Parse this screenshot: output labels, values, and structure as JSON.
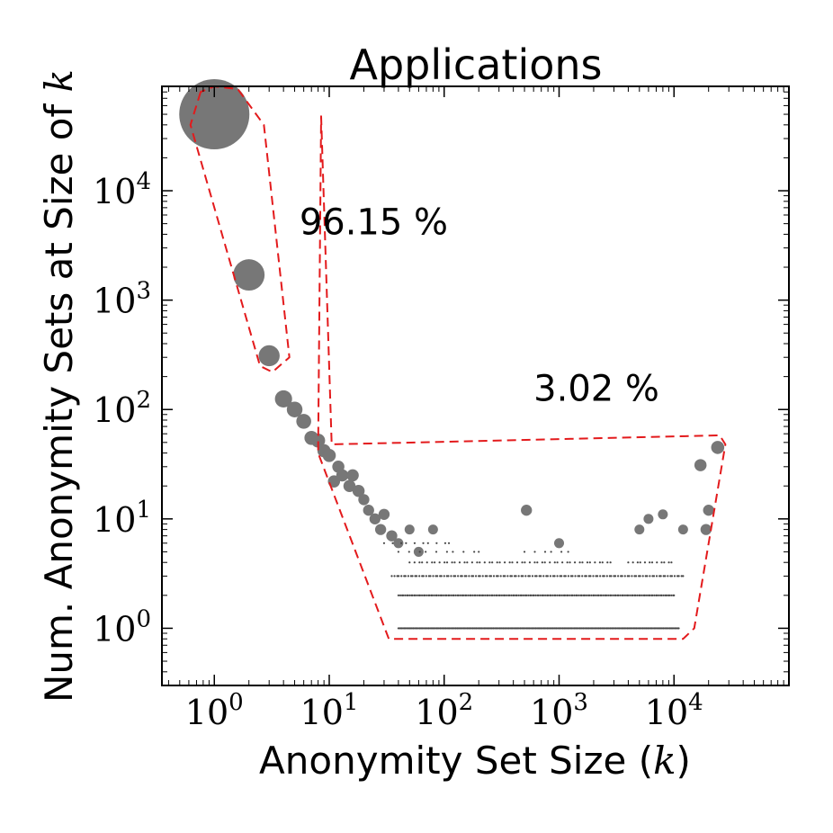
{
  "chart_data": {
    "type": "scatter",
    "title": "Applications",
    "xlabel": "Anonymity Set Size (k)",
    "ylabel": "Num. Anonymity Sets at Size of k",
    "xscale": "log",
    "yscale": "log",
    "xlim": [
      0.35,
      100000
    ],
    "ylim": [
      0.3,
      90000
    ],
    "x_ticks": [
      {
        "value": 1,
        "base": "10",
        "exp": "0"
      },
      {
        "value": 10,
        "base": "10",
        "exp": "1"
      },
      {
        "value": 100,
        "base": "10",
        "exp": "2"
      },
      {
        "value": 1000,
        "base": "10",
        "exp": "3"
      },
      {
        "value": 10000,
        "base": "10",
        "exp": "4"
      }
    ],
    "y_ticks": [
      {
        "value": 1,
        "base": "10",
        "exp": "0"
      },
      {
        "value": 10,
        "base": "10",
        "exp": "1"
      },
      {
        "value": 100,
        "base": "10",
        "exp": "2"
      },
      {
        "value": 1000,
        "base": "10",
        "exp": "3"
      },
      {
        "value": 10000,
        "base": "10",
        "exp": "4"
      }
    ],
    "grid": false,
    "marker_color": "#777777",
    "annotation_color": "#e31a1c",
    "marker_size_note": "marker area proportional to share of records",
    "points": [
      {
        "x": 1,
        "y": 50000,
        "s": 1
      },
      {
        "x": 2,
        "y": 1700,
        "s": 0.2
      },
      {
        "x": 3,
        "y": 310,
        "s": 0.09
      },
      {
        "x": 4,
        "y": 125,
        "s": 0.06
      },
      {
        "x": 5,
        "y": 100,
        "s": 0.05
      },
      {
        "x": 6,
        "y": 78,
        "s": 0.045
      },
      {
        "x": 7,
        "y": 55,
        "s": 0.04
      },
      {
        "x": 8,
        "y": 52,
        "s": 0.04
      },
      {
        "x": 9,
        "y": 42,
        "s": 0.035
      },
      {
        "x": 10,
        "y": 38,
        "s": 0.035
      },
      {
        "x": 11,
        "y": 22,
        "s": 0.03
      },
      {
        "x": 12,
        "y": 30,
        "s": 0.03
      },
      {
        "x": 13,
        "y": 25,
        "s": 0.03
      },
      {
        "x": 15,
        "y": 20,
        "s": 0.03
      },
      {
        "x": 16,
        "y": 25,
        "s": 0.03
      },
      {
        "x": 18,
        "y": 18,
        "s": 0.03
      },
      {
        "x": 20,
        "y": 15,
        "s": 0.025
      },
      {
        "x": 22,
        "y": 12,
        "s": 0.025
      },
      {
        "x": 25,
        "y": 10,
        "s": 0.025
      },
      {
        "x": 28,
        "y": 8,
        "s": 0.025
      },
      {
        "x": 30,
        "y": 11,
        "s": 0.025
      },
      {
        "x": 35,
        "y": 7,
        "s": 0.025
      },
      {
        "x": 40,
        "y": 6,
        "s": 0.02
      },
      {
        "x": 50,
        "y": 8,
        "s": 0.02
      },
      {
        "x": 60,
        "y": 5,
        "s": 0.02
      },
      {
        "x": 80,
        "y": 8,
        "s": 0.02
      },
      {
        "x": 520,
        "y": 12,
        "s": 0.025
      },
      {
        "x": 1000,
        "y": 6,
        "s": 0.02
      },
      {
        "x": 5000,
        "y": 8,
        "s": 0.02
      },
      {
        "x": 6000,
        "y": 10,
        "s": 0.02
      },
      {
        "x": 8000,
        "y": 11,
        "s": 0.02
      },
      {
        "x": 12000,
        "y": 8,
        "s": 0.02
      },
      {
        "x": 17000,
        "y": 31,
        "s": 0.03
      },
      {
        "x": 19000,
        "y": 8,
        "s": 0.025
      },
      {
        "x": 20000,
        "y": 12,
        "s": 0.025
      },
      {
        "x": 24000,
        "y": 45,
        "s": 0.035
      }
    ],
    "bands": [
      {
        "y": 6,
        "x_from": 30,
        "x_to": 110,
        "count": 10
      },
      {
        "y": 5,
        "x_from": 40,
        "x_to": 200,
        "count": 10
      },
      {
        "y": 5,
        "x_from": 500,
        "x_to": 1200,
        "count": 6
      },
      {
        "y": 4,
        "x_from": 50,
        "x_to": 2800,
        "count": 50
      },
      {
        "y": 4,
        "x_from": 4000,
        "x_to": 9500,
        "count": 12
      },
      {
        "y": 3,
        "x_from": 35,
        "x_to": 12000,
        "count": 130
      },
      {
        "y": 2,
        "x_from": 40,
        "x_to": 10000,
        "count": 180
      },
      {
        "y": 1,
        "x_from": 40,
        "x_to": 11000,
        "count": 260
      }
    ],
    "annotations": [
      {
        "text": "96.15 %",
        "x": 5.5,
        "y": 4000
      },
      {
        "text": "3.02 %",
        "x": 600,
        "y": 120
      }
    ],
    "regions": [
      {
        "name": "top-region",
        "points": [
          [
            0.76,
            80000
          ],
          [
            0.62,
            40000
          ],
          [
            2.5,
            250
          ],
          [
            3.2,
            220
          ],
          [
            4.5,
            300
          ],
          [
            2.7,
            40000
          ],
          [
            1.6,
            85000
          ],
          [
            1.0,
            90000
          ]
        ]
      },
      {
        "name": "tail-region",
        "points": [
          [
            8.5,
            48000
          ],
          [
            10.5,
            48
          ],
          [
            25000,
            58
          ],
          [
            28000,
            48
          ],
          [
            15000,
            1
          ],
          [
            12000,
            0.8
          ],
          [
            33,
            0.8
          ],
          [
            8,
            40
          ]
        ]
      }
    ]
  }
}
